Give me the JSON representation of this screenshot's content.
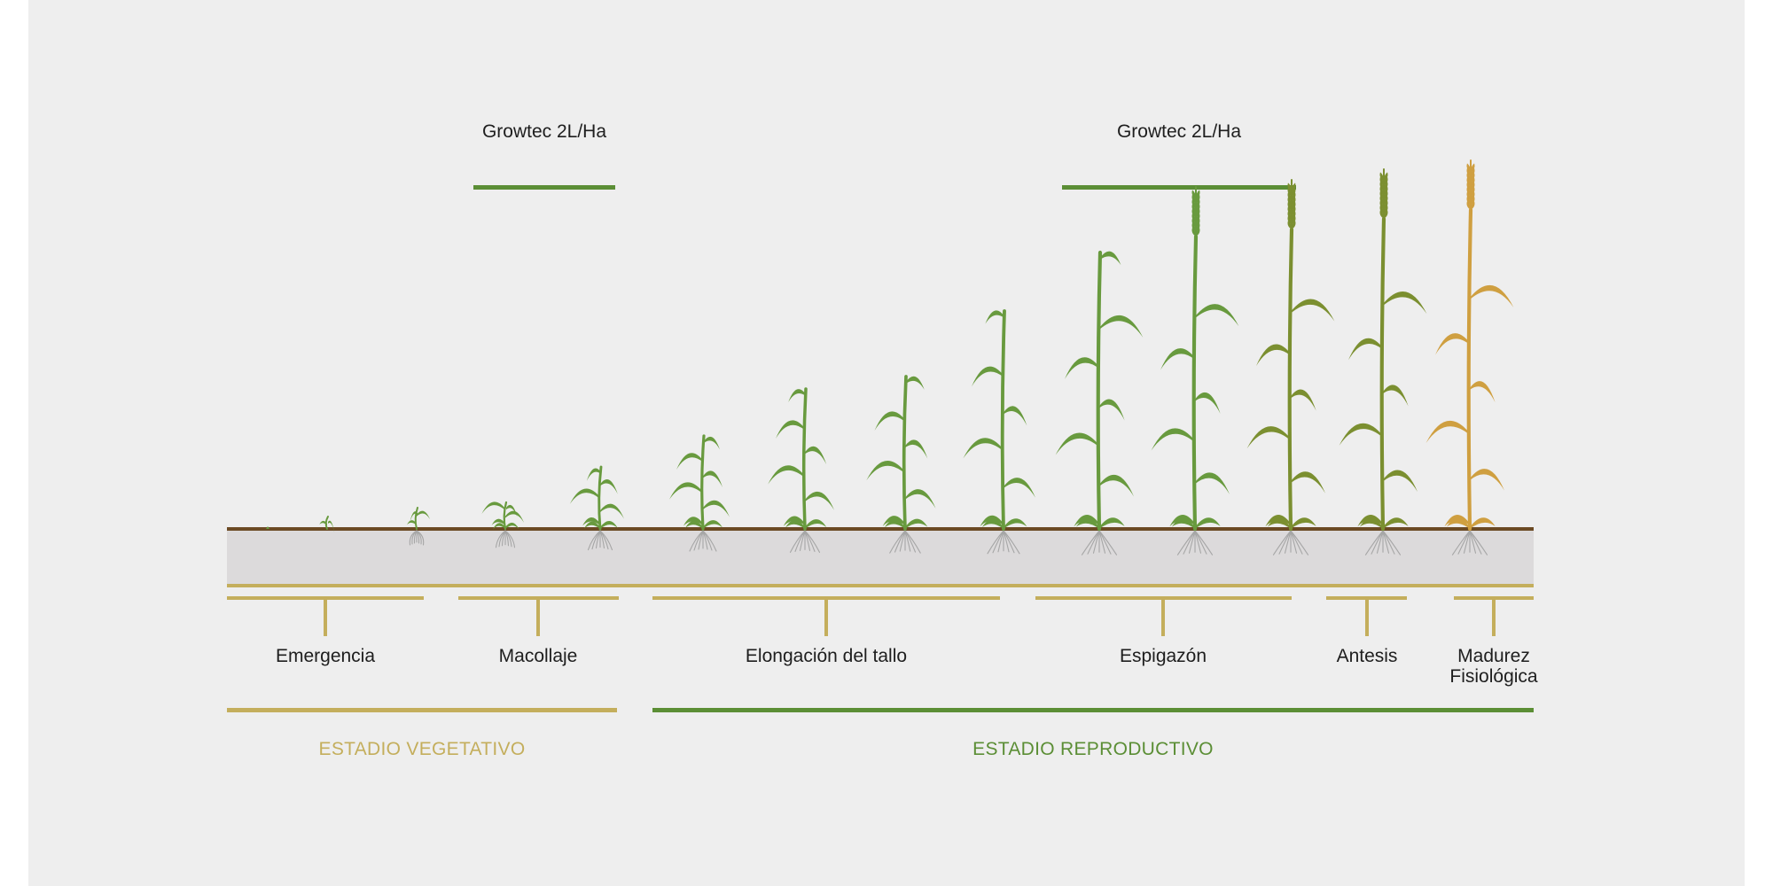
{
  "colors": {
    "background": "#eeeeee",
    "application_bar": "#5b8e35",
    "vegetative": "#c4ae5c",
    "reproductive": "#5b8e35",
    "soil_line": "#6b4a24",
    "soil_band": "#dcdadb",
    "plant_green": "#689a3e",
    "plant_olive": "#7b8f30",
    "plant_golden": "#cf9f40"
  },
  "applications": [
    {
      "label": "Growtec 2L/Ha"
    },
    {
      "label": "Growtec 2L/Ha"
    }
  ],
  "phases": [
    {
      "label": "Emergencia"
    },
    {
      "label": "Macollaje"
    },
    {
      "label": "Elongación del tallo"
    },
    {
      "label": "Espigazón"
    },
    {
      "label": "Antesis"
    },
    {
      "label_line1": "Madurez",
      "label_line2": "Fisiológica"
    }
  ],
  "stages": {
    "vegetative": {
      "label": "ESTADIO VEGETATIVO"
    },
    "reproductive": {
      "label": "ESTADIO REPRODUCTIVO"
    }
  }
}
